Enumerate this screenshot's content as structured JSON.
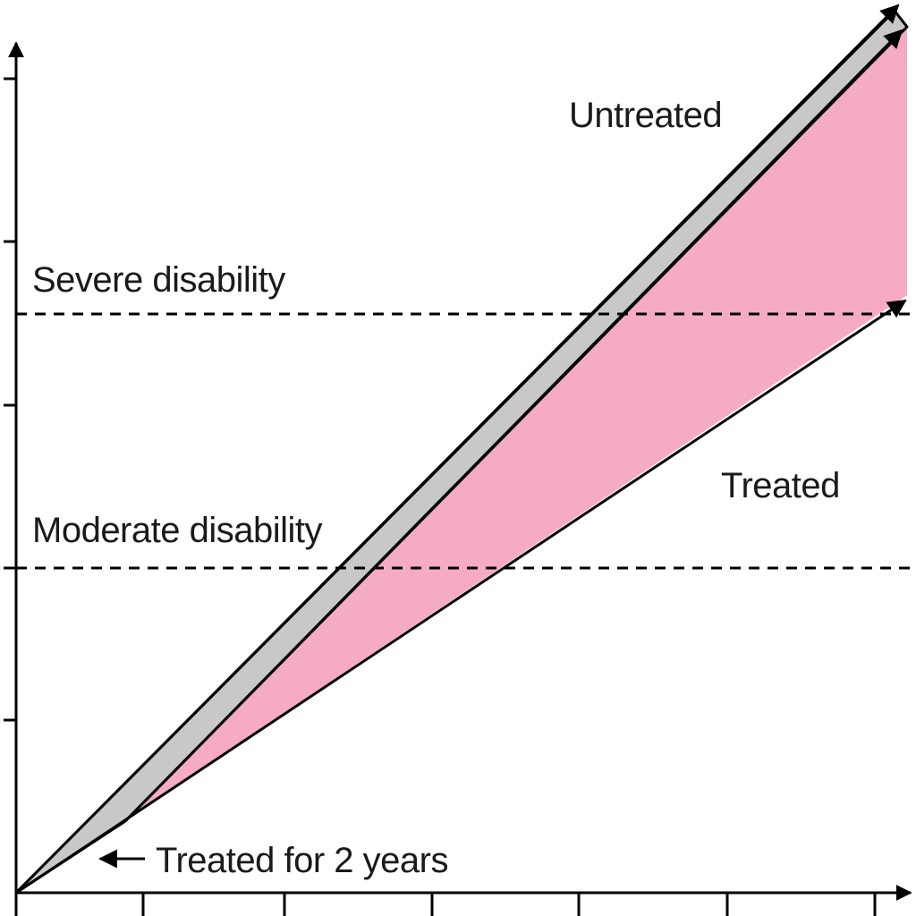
{
  "labels": {
    "untreated": "Untreated",
    "treated": "Treated",
    "treated_2_years": "Treated for 2 years",
    "severe": "Severe disability",
    "moderate": "Moderate disability"
  },
  "colors": {
    "shaded_region": "#f5abc4",
    "gray_band": "#c8c8c8",
    "line": "#000000"
  }
}
